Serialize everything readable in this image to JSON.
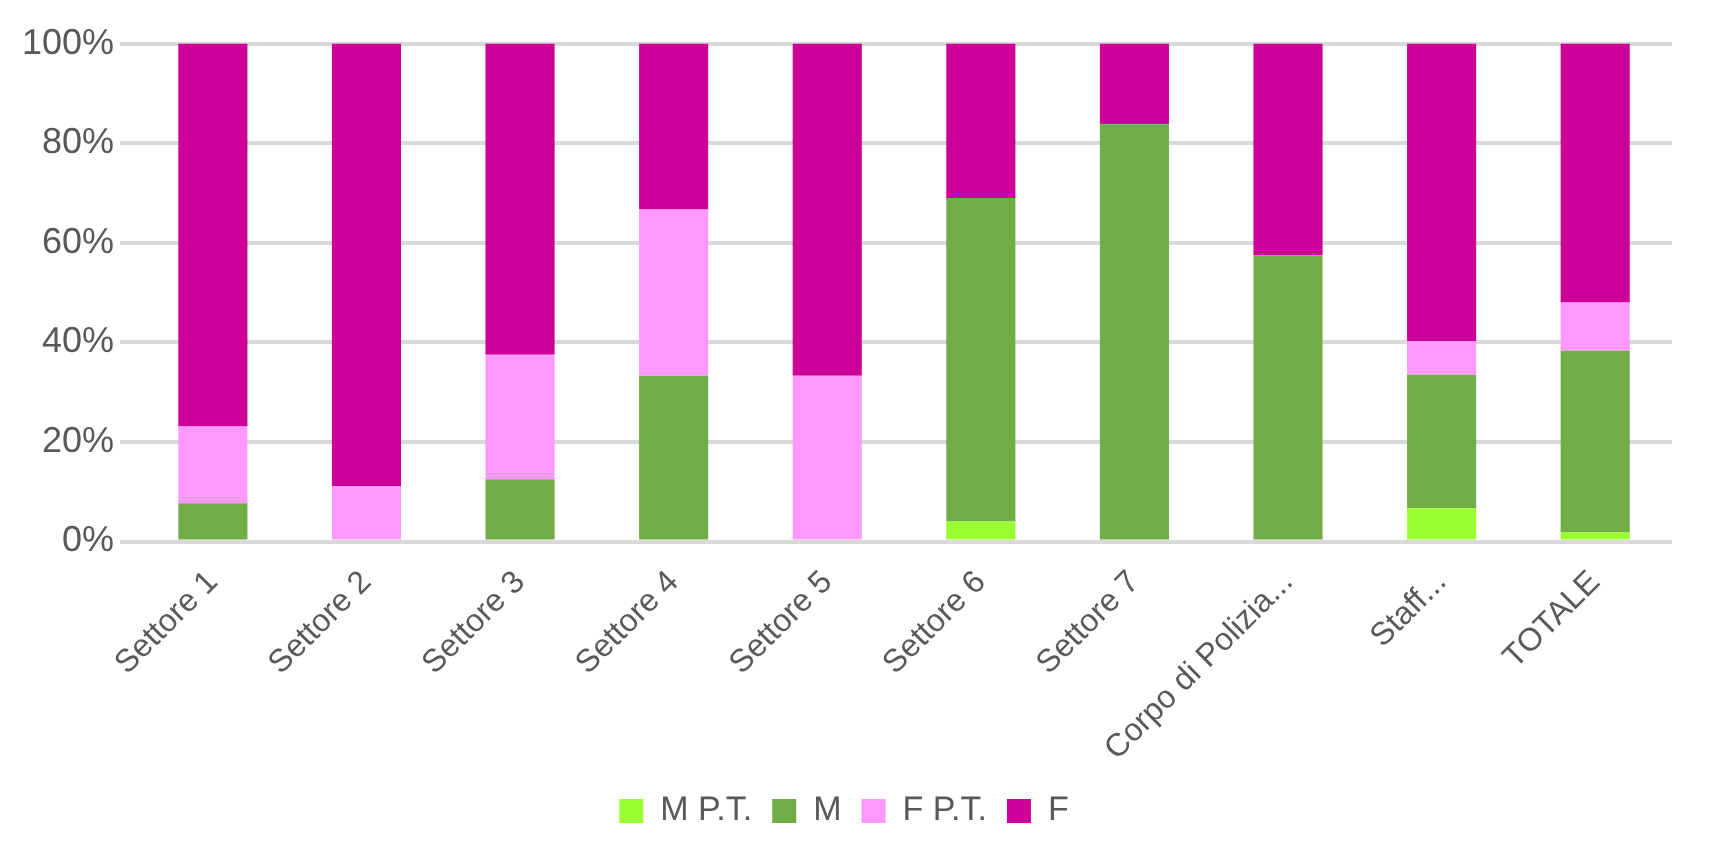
{
  "chart_data": {
    "type": "bar",
    "stacked": true,
    "categories": [
      "Settore 1",
      "Settore 2",
      "Settore 3",
      "Settore 4",
      "Settore 5",
      "Settore 6",
      "Settore 7",
      "Corpo di Polizia...",
      "Staff...",
      "TOTALE"
    ],
    "series": [
      {
        "name": "M P.T.",
        "color": "#99ff33",
        "values": [
          0,
          0,
          0,
          0,
          0,
          4,
          0,
          0,
          6.7,
          1.8
        ]
      },
      {
        "name": "M",
        "color": "#70ad47",
        "values": [
          7.7,
          0,
          12.5,
          33.3,
          0,
          65,
          83.8,
          57.5,
          26.8,
          36.5
        ]
      },
      {
        "name": "F P.T.",
        "color": "#ff99ff",
        "values": [
          15.4,
          11.1,
          25,
          33.4,
          33.3,
          0,
          0,
          0,
          6.7,
          9.7
        ]
      },
      {
        "name": "F",
        "color": "#cc0099",
        "values": [
          76.9,
          88.9,
          62.5,
          33.3,
          66.7,
          31,
          16.2,
          42.5,
          59.8,
          52
        ]
      }
    ],
    "ylim": [
      0,
      100
    ],
    "yticks": [
      {
        "value": 0,
        "label": "0%"
      },
      {
        "value": 20,
        "label": "20%"
      },
      {
        "value": 40,
        "label": "40%"
      },
      {
        "value": 60,
        "label": "60%"
      },
      {
        "value": 80,
        "label": "80%"
      },
      {
        "value": 100,
        "label": "100%"
      }
    ],
    "grid": "y",
    "legend": "bottom"
  }
}
